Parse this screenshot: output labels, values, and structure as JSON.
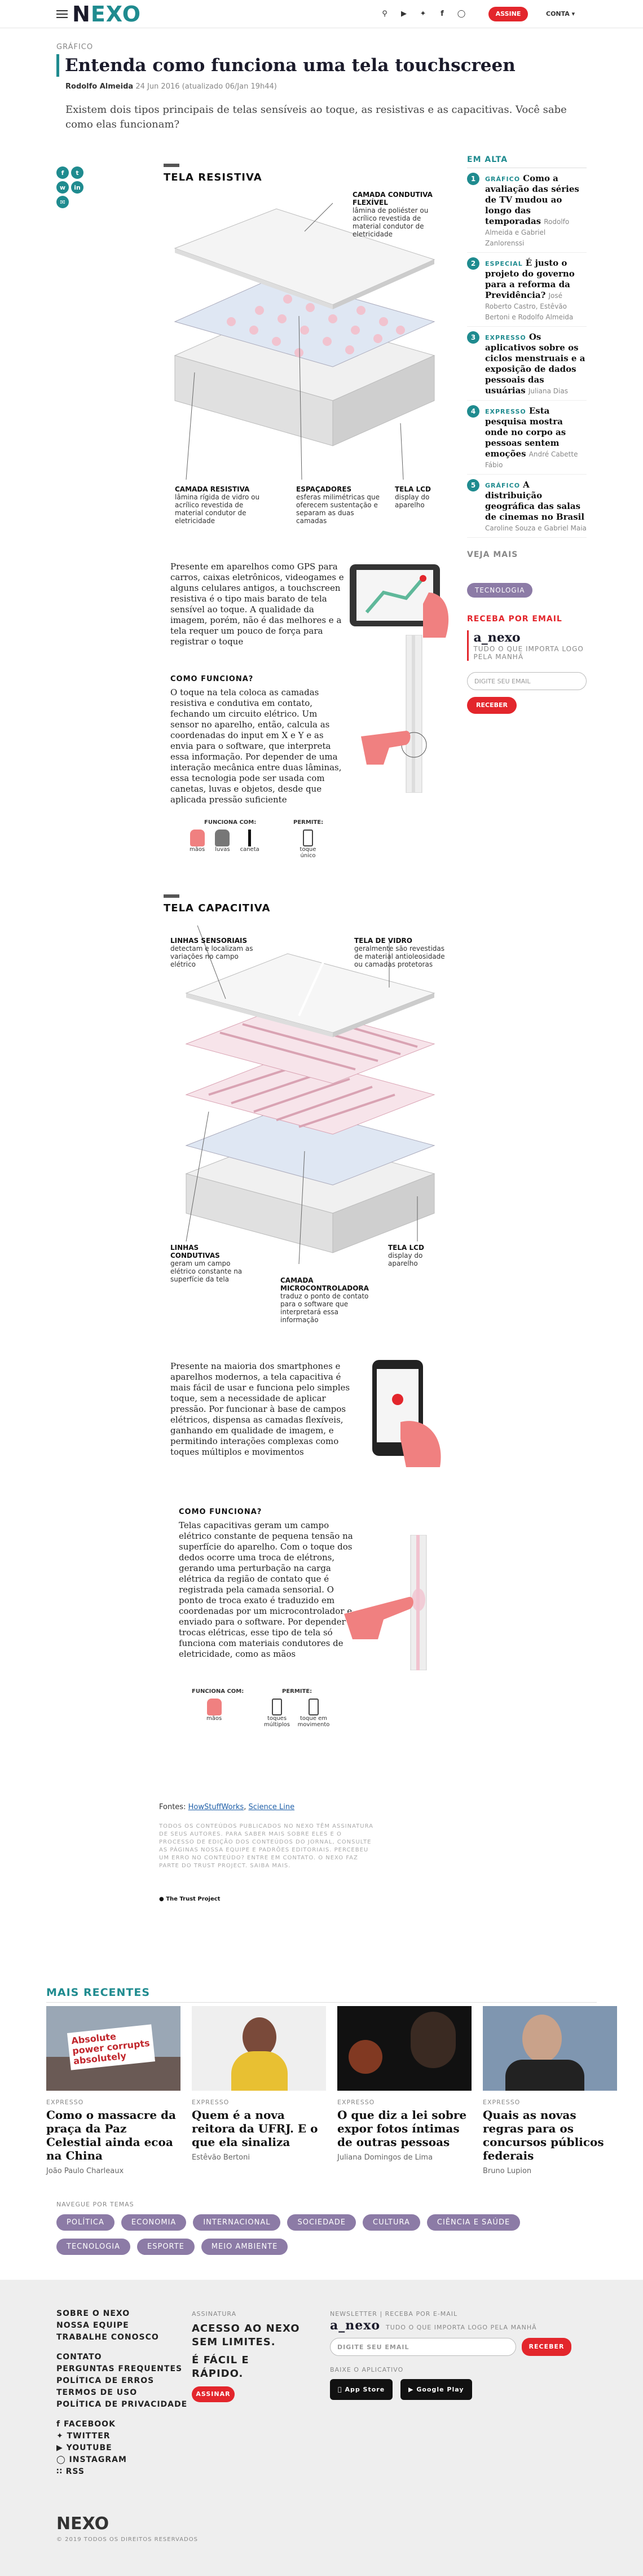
{
  "header": {
    "logo_prefix": "N",
    "logo_suffix": "EXO",
    "subscribe": "ASSINE",
    "account": "CONTA",
    "icons": [
      "search-icon",
      "youtube-icon",
      "twitter-icon",
      "facebook-icon",
      "instagram-icon"
    ]
  },
  "article": {
    "kicker": "GRÁFICO",
    "title": "Entenda como funciona uma tela touchscreen",
    "author": "Rodolfo Almeida",
    "date": "24 Jun 2016",
    "updated": "(atualizado 06/Jan 19h44)",
    "lede": "Existem dois tipos principais de telas sensíveis ao toque, as resistivas e as capacitivas. Você sabe como elas funcionam?"
  },
  "resistiva": {
    "heading": "TELA RESISTIVA",
    "labels": {
      "top": {
        "title": "CAMADA CONDUTIVA FLEXÍVEL",
        "text": "lâmina de poliéster ou acrílico revestida de material condutor de eletricidade"
      },
      "left": {
        "title": "CAMADA RESISTIVA",
        "text": "lâmina rígida de vidro ou acrílico revestida de material condutor de eletricidade"
      },
      "mid": {
        "title": "ESPAÇADORES",
        "text": "esferas milimétricas que oferecem sustentação e separam as duas camadas"
      },
      "right": {
        "title": "TELA LCD",
        "text": "display do aparelho"
      }
    },
    "intro": "Presente em aparelhos como GPS para carros, caixas eletrônicos, videogames e alguns celulares antigos, a touchscreen resistiva é o tipo mais barato de tela sensível ao toque. A qualidade da imagem, porém, não é das melhores e a tela requer um pouco de força para registrar o toque",
    "how_title": "COMO FUNCIONA?",
    "how": "O toque na tela coloca as camadas resistiva e condutiva em contato, fechando um circuito elétrico. Um sensor no aparelho, então, calcula as coordenadas do input em X e Y e as envia para o software, que interpreta essa informação. Por depender de uma interação mecânica entre duas lâminas, essa tecnologia pode ser usada com canetas, luvas e objetos, desde que aplicada pressão suficiente",
    "works_with": "FUNCIONA COM:",
    "allows": "PERMITE:",
    "icons": [
      "mãos",
      "luvas",
      "caneta"
    ],
    "allow_icons": [
      "toque único"
    ]
  },
  "capacitiva": {
    "heading": "TELA CAPACITIVA",
    "labels": {
      "tl": {
        "title": "LINHAS SENSORIAIS",
        "text": "detectam e localizam as variações no campo elétrico"
      },
      "tr": {
        "title": "TELA DE VIDRO",
        "text": "geralmente são revestidas de material antioleosidade ou camadas protetoras"
      },
      "bl": {
        "title": "LINHAS CONDUTIVAS",
        "text": "geram um campo elétrico constante na superfície da tela"
      },
      "bm": {
        "title": "CAMADA MICROCONTROLADORA",
        "text": "traduz o ponto de contato para o software que interpretará essa informação"
      },
      "br": {
        "title": "TELA LCD",
        "text": "display do aparelho"
      }
    },
    "intro": "Presente na maioria dos smartphones e aparelhos modernos, a tela capacitiva é mais fácil de usar e funciona pelo simples toque, sem a necessidade de aplicar pressão. Por funcionar à base de campos elétricos, dispensa as camadas flexíveis, ganhando em qualidade de imagem, e permitindo interações complexas como toques múltiplos e movimentos",
    "how_title": "COMO FUNCIONA?",
    "how": "Telas capacitivas geram um campo elétrico constante de pequena tensão na superfície do aparelho. Com o toque dos dedos ocorre uma troca de elétrons, gerando uma perturbação na carga elétrica da região de contato que é registrada pela camada sensorial. O ponto de troca exato é traduzido em coordenadas por um microcontrolador e enviado para o software. Por depender de trocas elétricas, esse tipo de tela só funciona com materiais condutores de eletricidade, como as mãos",
    "works_with": "FUNCIONA COM:",
    "allows": "PERMITE:",
    "icons": [
      "mãos"
    ],
    "allow_icons": [
      "toques múltiplos",
      "toque em movimento"
    ]
  },
  "sources": {
    "label": "Fontes:",
    "links": [
      "HowStuffWorks",
      "Science Line"
    ]
  },
  "disclaimer": "TODOS OS CONTEÚDOS PUBLICADOS NO NEXO TÊM ASSINATURA DE SEUS AUTORES. PARA SABER MAIS SOBRE ELES E O PROCESSO DE EDIÇÃO DOS CONTEÚDOS DO JORNAL, CONSULTE AS PÁGINAS NOSSA EQUIPE E PADRÕES EDITORIAIS. PERCEBEU UM ERRO NO CONTEÚDO? ENTRE EM CONTATO. O NEXO FAZ PARTE DO TRUST PROJECT. SAIBA MAIS.",
  "trust": "The Trust Project",
  "sidebar": {
    "heading": "EM ALTA",
    "items": [
      {
        "n": "1",
        "kind": "GRÁFICO",
        "title": "Como a avaliação das séries de TV mudou ao longo das temporadas",
        "author": "Rodolfo Almeida e Gabriel Zanlorenssi"
      },
      {
        "n": "2",
        "kind": "ESPECIAL",
        "title": "É justo o projeto do governo para a reforma da Previdência?",
        "author": "José Roberto Castro, Estêvão Bertoni e Rodolfo Almeida"
      },
      {
        "n": "3",
        "kind": "EXPRESSO",
        "title": "Os aplicativos sobre os ciclos menstruais e a exposição de dados pessoais das usuárias",
        "author": "Juliana Dias"
      },
      {
        "n": "4",
        "kind": "EXPRESSO",
        "title": "Esta pesquisa mostra onde no corpo as pessoas sentem emoções",
        "author": "André Cabette Fábio"
      },
      {
        "n": "5",
        "kind": "GRÁFICO",
        "title": "A distribuição geográfica das salas de cinemas no Brasil",
        "author": "Caroline Souza e Gabriel Maia"
      }
    ],
    "see_more": "VEJA MAIS",
    "tag": "TECNOLOGIA",
    "newsletter_head": "RECEBA POR EMAIL",
    "newsletter_name": "a_nexo",
    "newsletter_desc": "TUDO O QUE IMPORTA LOGO PELA MANHÃ",
    "email_placeholder": "DIGITE SEU EMAIL",
    "submit": "RECEBER"
  },
  "recentes": {
    "heading": "MAIS RECENTES",
    "cards": [
      {
        "kind": "EXPRESSO",
        "title": "Como o massacre da praça da Paz Celestial ainda ecoa na China",
        "author": "João Paulo Charleaux",
        "sign": "Absolute power corrupts absolutely"
      },
      {
        "kind": "EXPRESSO",
        "title": "Quem é a nova reitora da UFRJ. E o que ela sinaliza",
        "author": "Estêvão Bertoni"
      },
      {
        "kind": "EXPRESSO",
        "title": "O que diz a lei sobre expor fotos íntimas de outras pessoas",
        "author": "Juliana Domingos de Lima"
      },
      {
        "kind": "EXPRESSO",
        "title": "Quais as novas regras para os concursos públicos federais",
        "author": "Bruno Lupion"
      }
    ]
  },
  "temas": {
    "label": "NAVEGUE POR TEMAS",
    "items": [
      "POLÍTICA",
      "ECONOMIA",
      "INTERNACIONAL",
      "SOCIEDADE",
      "CULTURA",
      "CIÊNCIA E SAÚDE",
      "TECNOLOGIA",
      "ESPORTE",
      "MEIO AMBIENTE"
    ]
  },
  "footer": {
    "links1": [
      "SOBRE O NEXO",
      "NOSSA EQUIPE",
      "TRABALHE CONOSCO"
    ],
    "links2": [
      "CONTATO",
      "PERGUNTAS FREQUENTES",
      "POLÍTICA DE ERROS",
      "TERMOS DE USO",
      "POLÍTICA DE PRIVACIDADE"
    ],
    "social": [
      "FACEBOOK",
      "TWITTER",
      "YOUTUBE",
      "INSTAGRAM",
      "RSS"
    ],
    "sub_label": "ASSINATURA",
    "sub_text": "ACESSO AO NEXO SEM LIMITES.",
    "sub_text2": "É FÁCIL E RÁPIDO.",
    "sub_btn": "ASSINAR",
    "nl_label": "NEWSLETTER | RECEBA POR E-MAIL",
    "nl_name": "a_nexo",
    "nl_desc": "TUDO O QUE IMPORTA LOGO PELA MANHÃ",
    "nl_placeholder": "DIGITE SEU EMAIL",
    "nl_btn": "RECEBER",
    "app_label": "BAIXE O APLICATIVO",
    "appstore": "App Store",
    "googleplay": "Google Play",
    "copyright": "© 2019 TODOS OS DIREITOS RESERVADOS",
    "logo": "NEXO"
  }
}
